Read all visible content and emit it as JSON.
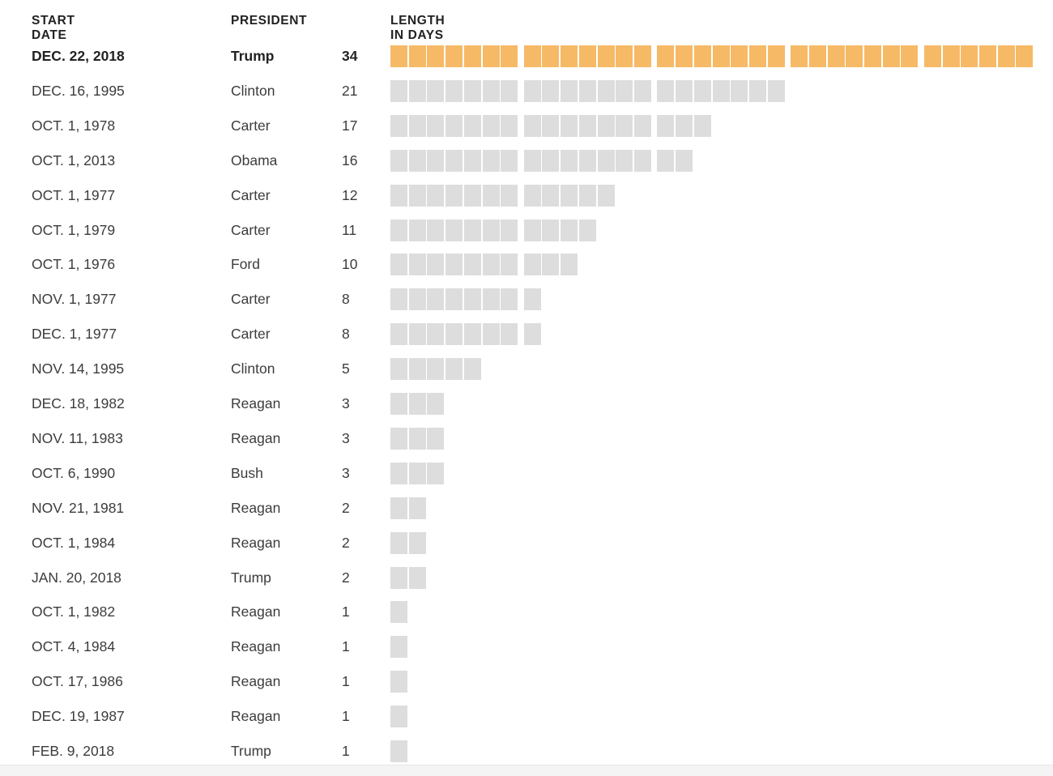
{
  "chart_data": {
    "type": "table",
    "columns": [
      "START DATE",
      "PRESIDENT",
      "LENGTH IN DAYS"
    ],
    "rows": [
      {
        "start_date": "DEC. 22, 2018",
        "president": "Trump",
        "days": 34,
        "highlight": true
      },
      {
        "start_date": "DEC. 16, 1995",
        "president": "Clinton",
        "days": 21
      },
      {
        "start_date": "OCT. 1, 1978",
        "president": "Carter",
        "days": 17
      },
      {
        "start_date": "OCT. 1, 2013",
        "president": "Obama",
        "days": 16
      },
      {
        "start_date": "OCT. 1, 1977",
        "president": "Carter",
        "days": 12
      },
      {
        "start_date": "OCT. 1, 1979",
        "president": "Carter",
        "days": 11
      },
      {
        "start_date": "OCT. 1, 1976",
        "president": "Ford",
        "days": 10
      },
      {
        "start_date": "NOV. 1, 1977",
        "president": "Carter",
        "days": 8
      },
      {
        "start_date": "DEC. 1, 1977",
        "president": "Carter",
        "days": 8
      },
      {
        "start_date": "NOV. 14, 1995",
        "president": "Clinton",
        "days": 5
      },
      {
        "start_date": "DEC. 18, 1982",
        "president": "Reagan",
        "days": 3
      },
      {
        "start_date": "NOV. 11, 1983",
        "president": "Reagan",
        "days": 3
      },
      {
        "start_date": "OCT. 6, 1990",
        "president": "Bush",
        "days": 3
      },
      {
        "start_date": "NOV. 21, 1981",
        "president": "Reagan",
        "days": 2
      },
      {
        "start_date": "OCT. 1, 1984",
        "president": "Reagan",
        "days": 2
      },
      {
        "start_date": "JAN. 20, 2018",
        "president": "Trump",
        "days": 2
      },
      {
        "start_date": "OCT. 1, 1982",
        "president": "Reagan",
        "days": 1
      },
      {
        "start_date": "OCT. 4, 1984",
        "president": "Reagan",
        "days": 1
      },
      {
        "start_date": "OCT. 17, 1986",
        "president": "Reagan",
        "days": 1
      },
      {
        "start_date": "DEC. 19, 1987",
        "president": "Reagan",
        "days": 1
      },
      {
        "start_date": "FEB. 9, 2018",
        "president": "Trump",
        "days": 1
      }
    ],
    "colors": {
      "highlight": "#f6b966",
      "default": "#dddddd"
    },
    "blocks_per_week": 7
  }
}
